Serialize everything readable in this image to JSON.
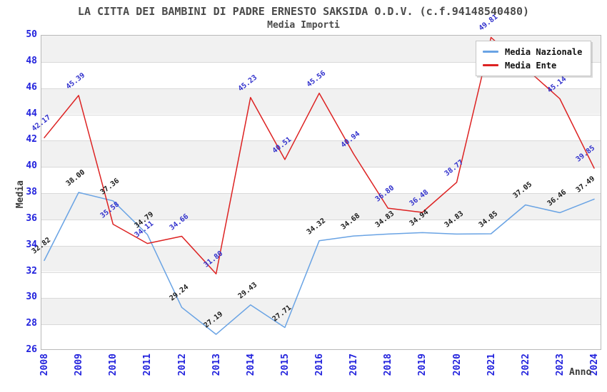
{
  "chart_data": {
    "type": "line",
    "title": "LA CITTA DEI BAMBINI DI PADRE ERNESTO SAKSIDA O.D.V. (c.f.94148540480)",
    "subtitle": "Media Importi",
    "xlabel": "Anno",
    "ylabel": "Media",
    "x": [
      2008,
      2009,
      2010,
      2011,
      2012,
      2013,
      2014,
      2015,
      2016,
      2017,
      2018,
      2019,
      2020,
      2021,
      2022,
      2023,
      2024
    ],
    "series": [
      {
        "name": "Media Nazionale",
        "color": "#69a3e4",
        "label_color": "#1a1a1a",
        "values": [
          32.82,
          38.0,
          37.36,
          34.79,
          29.24,
          27.19,
          29.43,
          27.71,
          34.32,
          34.68,
          34.83,
          34.94,
          34.83,
          34.85,
          37.05,
          36.46,
          37.49
        ]
      },
      {
        "name": "Media Ente",
        "color": "#dd2222",
        "label_color": "#3030cc",
        "values": [
          42.17,
          45.39,
          35.58,
          34.11,
          34.66,
          31.8,
          45.23,
          40.51,
          45.56,
          40.94,
          36.8,
          36.48,
          38.77,
          49.81,
          null,
          45.14,
          39.85
        ],
        "note": "2022 point hidden behind legend box"
      }
    ],
    "ylim": [
      26,
      50
    ],
    "ytick_step": 2,
    "yticks": [
      26,
      28,
      30,
      32,
      34,
      36,
      38,
      40,
      42,
      44,
      46,
      48,
      50
    ],
    "grid": "horizontal gridlines with alternating light-gray bands",
    "legend_position": "top-right",
    "tick_label_color": "#2222dd",
    "band_color": "#f1f1f1"
  }
}
